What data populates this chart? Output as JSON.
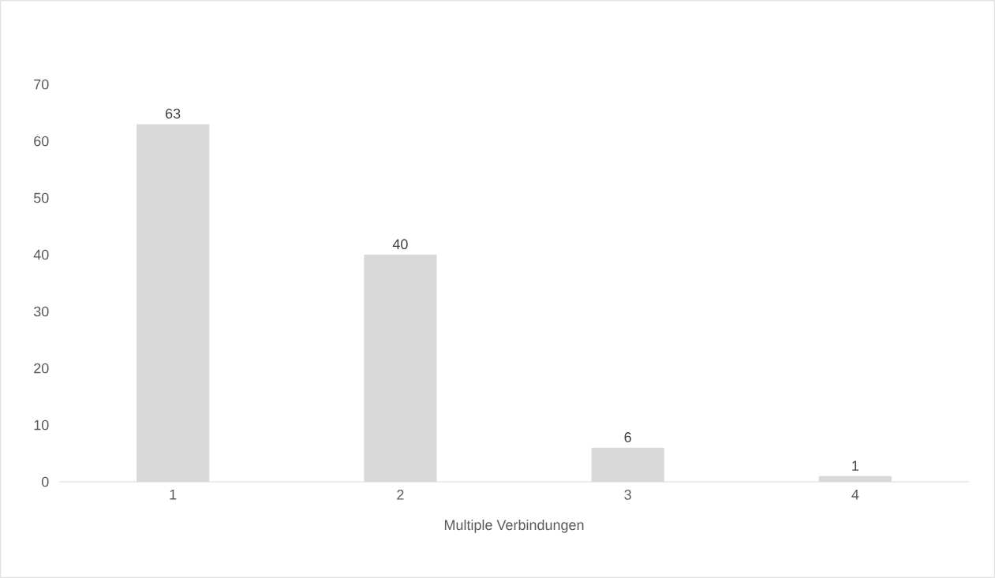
{
  "chart_data": {
    "type": "bar",
    "xlabel": "Multiple Verbindungen",
    "categories": [
      "1",
      "2",
      "3",
      "4"
    ],
    "values": [
      63,
      40,
      6,
      1
    ],
    "color": "#d9d9d9",
    "ylim": [
      0,
      70
    ],
    "yticks": [
      0,
      10,
      20,
      30,
      40,
      50,
      60,
      70
    ],
    "data_labels": true
  }
}
